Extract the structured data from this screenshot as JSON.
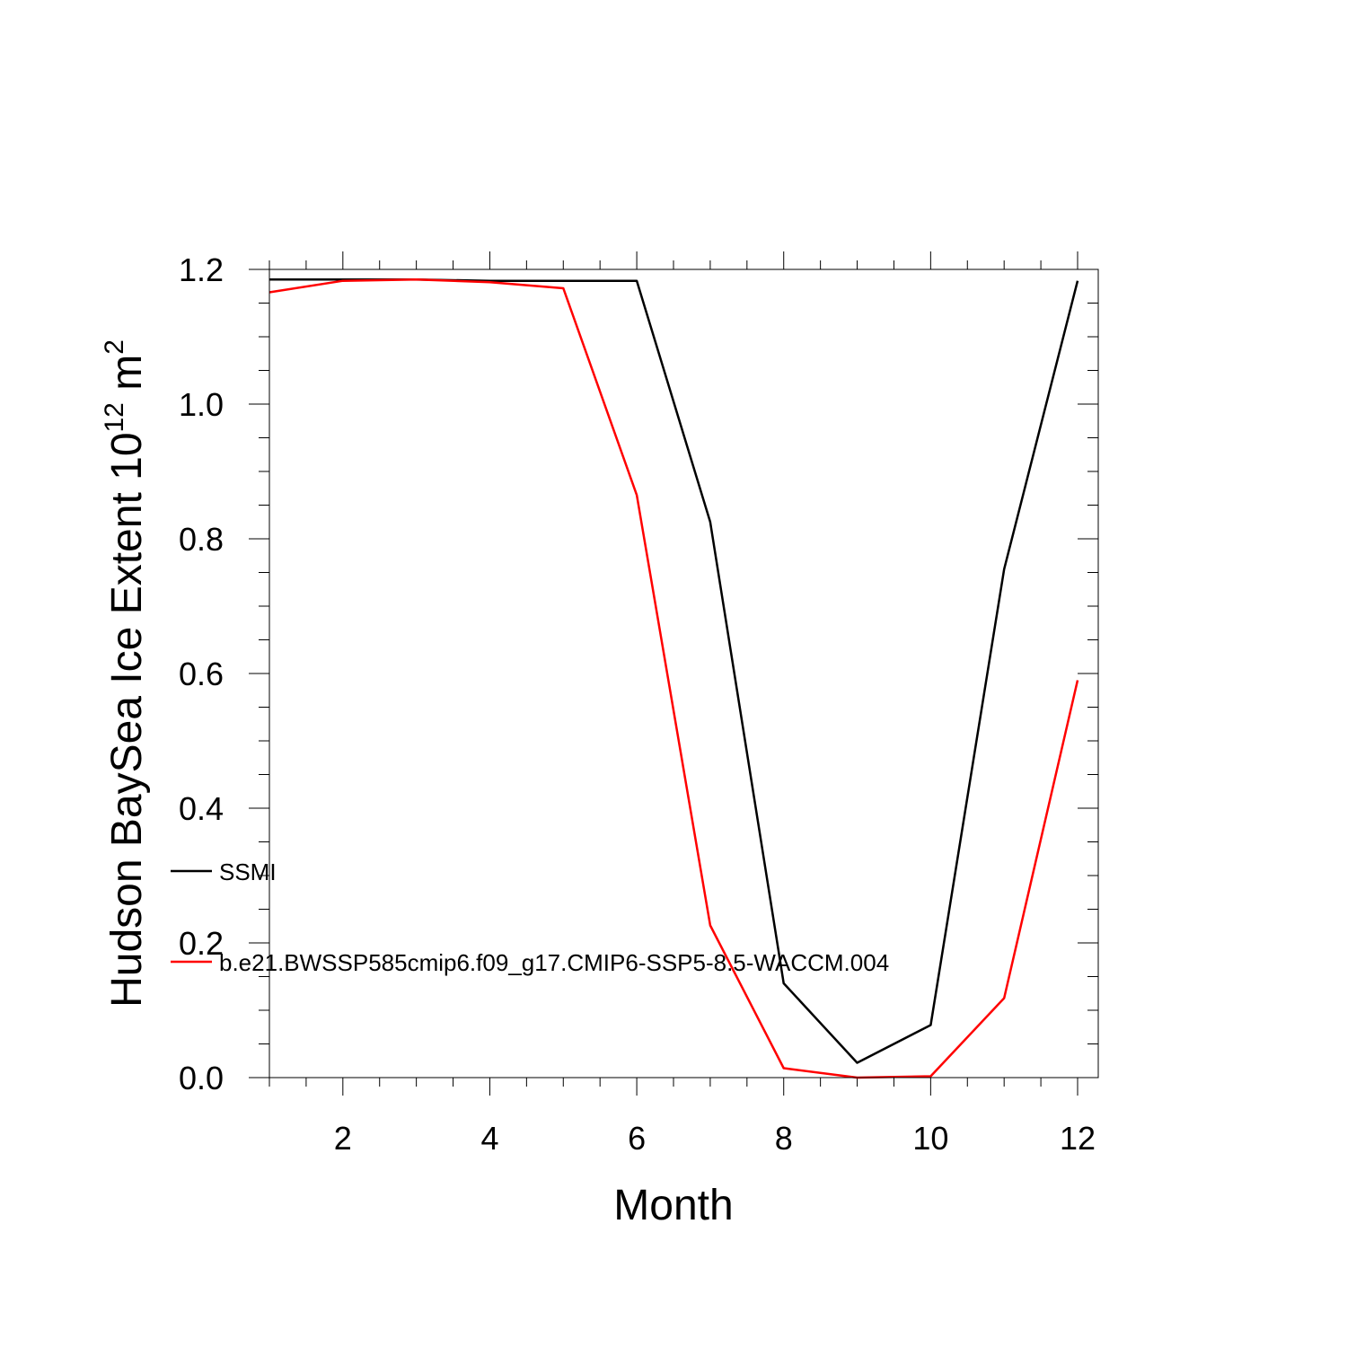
{
  "chart_data": {
    "type": "line",
    "xlabel": "Month",
    "ylabel": {
      "main": "Hudson BaySea Ice Extent 10",
      "exponent": "12",
      "unit": " m",
      "unit_exponent": "2"
    },
    "xlim": [
      1,
      12
    ],
    "ylim": [
      0,
      1.2
    ],
    "x_ticks": [
      2,
      4,
      6,
      8,
      10,
      12
    ],
    "x_tick_labels": [
      "2",
      "4",
      "6",
      "8",
      "10",
      "12"
    ],
    "y_ticks": [
      0,
      0.2,
      0.4,
      0.6,
      0.8,
      1.0,
      1.2
    ],
    "y_tick_labels": [
      "0.0",
      "0.2",
      "0.4",
      "0.6",
      "0.8",
      "1.0",
      "1.2"
    ],
    "x": [
      1,
      2,
      3,
      4,
      5,
      6,
      7,
      8,
      9,
      10,
      11,
      12
    ],
    "series": [
      {
        "name": "SSMI",
        "color": "#000000",
        "values": [
          1.185,
          1.185,
          1.185,
          1.183,
          1.183,
          1.183,
          0.825,
          0.14,
          0.022,
          0.078,
          0.755,
          1.183
        ]
      },
      {
        "name": "b.e21.BWSSP585cmip6.f09_g17.CMIP6-SSP5-8.5-WACCM.004",
        "color": "#ff0000",
        "values": [
          1.166,
          1.183,
          1.185,
          1.181,
          1.172,
          0.865,
          0.226,
          0.014,
          0.0,
          0.002,
          0.118,
          0.59
        ]
      }
    ],
    "legend_position": "inside-bottom-left",
    "grid": false
  }
}
